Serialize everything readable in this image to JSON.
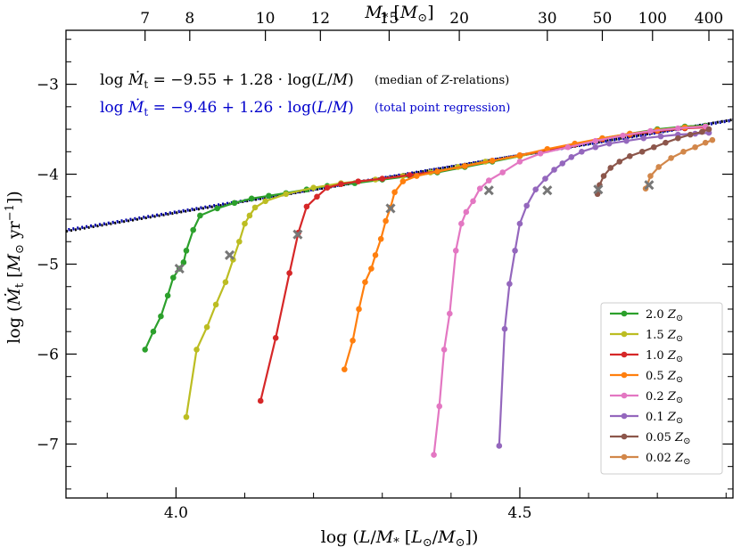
{
  "chart_data": {
    "type": "line",
    "xlabel": "log (L/M_* [L_⊙/M_⊙])",
    "ylabel": "log (Ṁ_t [M_⊙ yr^-1])",
    "top_xlabel": "M_* [M_⊙]",
    "xlim": [
      3.84,
      4.81
    ],
    "ylim": [
      -7.6,
      -2.4
    ],
    "x_ticks": [
      4.0,
      4.5
    ],
    "x_tick_labels": [
      "4.0",
      "4.5"
    ],
    "y_ticks": [
      -7,
      -6,
      -5,
      -4,
      -3
    ],
    "y_tick_labels": [
      "−7",
      "−6",
      "−5",
      "−4",
      "−3"
    ],
    "top_ticks": [
      {
        "label": "7",
        "x": 3.955
      },
      {
        "label": "8",
        "x": 4.02
      },
      {
        "label": "10",
        "x": 4.13
      },
      {
        "label": "12",
        "x": 4.21
      },
      {
        "label": "15",
        "x": 4.31
      },
      {
        "label": "20",
        "x": 4.412
      },
      {
        "label": "30",
        "x": 4.54
      },
      {
        "label": "50",
        "x": 4.62
      },
      {
        "label": "100",
        "x": 4.693
      },
      {
        "label": "400",
        "x": 4.775
      }
    ],
    "annotations": [
      {
        "line1": "log  Ṁ_t = −9.55 + 1.28 · log(L/M)",
        "line2": "(median of Z-relations)",
        "color": "#000000"
      },
      {
        "line1": "log  Ṁ_t = −9.46 + 1.26 · log(L/M)",
        "line2": "(total point regression)",
        "color": "#0000cc"
      }
    ],
    "regression_lines": [
      {
        "intercept": -9.55,
        "slope": 1.28,
        "color": "#000000",
        "style": "dotted"
      },
      {
        "intercept": -9.46,
        "slope": 1.26,
        "color": "#0000aa",
        "style": "dotted"
      }
    ],
    "legend_position": "lower-right",
    "series": [
      {
        "name": "2.0 Z_⊙",
        "label_num": "2.0",
        "color": "#2ca02c",
        "x": [
          3.955,
          3.967,
          3.978,
          3.988,
          3.996,
          4.005,
          4.011,
          4.015,
          4.025,
          4.035,
          4.06,
          4.085,
          4.11,
          4.135,
          4.16,
          4.19,
          4.22,
          4.26,
          4.3,
          4.34,
          4.38,
          4.42,
          4.46,
          4.5,
          4.54,
          4.58,
          4.62,
          4.66,
          4.7,
          4.74,
          4.77
        ],
        "y": [
          -5.95,
          -5.75,
          -5.58,
          -5.35,
          -5.15,
          -5.05,
          -4.98,
          -4.85,
          -4.62,
          -4.46,
          -4.38,
          -4.32,
          -4.27,
          -4.24,
          -4.21,
          -4.17,
          -4.13,
          -4.1,
          -4.06,
          -4.02,
          -3.98,
          -3.92,
          -3.86,
          -3.8,
          -3.73,
          -3.67,
          -3.6,
          -3.55,
          -3.5,
          -3.47,
          -3.46
        ],
        "mark": {
          "x": 4.005,
          "y": -5.05
        }
      },
      {
        "name": "1.5 Z_⊙",
        "label_num": "1.5",
        "color": "#bcbd22",
        "x": [
          4.015,
          4.03,
          4.045,
          4.058,
          4.072,
          4.083,
          4.092,
          4.1,
          4.107,
          4.115,
          4.13,
          4.16,
          4.2,
          4.24,
          4.29,
          4.33,
          4.37,
          4.41,
          4.45,
          4.5,
          4.54,
          4.58,
          4.62,
          4.66,
          4.7,
          4.74,
          4.77
        ],
        "y": [
          -6.7,
          -5.95,
          -5.7,
          -5.45,
          -5.2,
          -4.95,
          -4.75,
          -4.55,
          -4.46,
          -4.37,
          -4.3,
          -4.22,
          -4.15,
          -4.1,
          -4.06,
          -4.02,
          -3.98,
          -3.92,
          -3.86,
          -3.8,
          -3.73,
          -3.67,
          -3.61,
          -3.56,
          -3.51,
          -3.48,
          -3.47
        ],
        "mark": {
          "x": 4.078,
          "y": -4.9
        }
      },
      {
        "name": "1.0 Z_⊙",
        "label_num": "1.0",
        "color": "#d62728",
        "x": [
          4.123,
          4.145,
          4.165,
          4.178,
          4.19,
          4.205,
          4.22,
          4.24,
          4.265,
          4.3,
          4.34,
          4.38,
          4.42,
          4.46,
          4.5,
          4.54,
          4.58,
          4.62,
          4.66,
          4.7,
          4.74,
          4.77
        ],
        "y": [
          -6.52,
          -5.82,
          -5.1,
          -4.65,
          -4.36,
          -4.25,
          -4.15,
          -4.11,
          -4.08,
          -4.05,
          -4.01,
          -3.97,
          -3.91,
          -3.85,
          -3.79,
          -3.73,
          -3.67,
          -3.61,
          -3.56,
          -3.52,
          -3.49,
          -3.48
        ],
        "mark": {
          "x": 4.177,
          "y": -4.67
        }
      },
      {
        "name": "0.5 Z_⊙",
        "label_num": "0.5",
        "color": "#ff7f0e",
        "x": [
          4.245,
          4.257,
          4.266,
          4.275,
          4.284,
          4.29,
          4.298,
          4.305,
          4.312,
          4.318,
          4.33,
          4.35,
          4.38,
          4.42,
          4.46,
          4.5,
          4.54,
          4.58,
          4.62,
          4.66,
          4.7,
          4.74,
          4.77
        ],
        "y": [
          -6.17,
          -5.85,
          -5.5,
          -5.2,
          -5.05,
          -4.9,
          -4.72,
          -4.52,
          -4.37,
          -4.2,
          -4.08,
          -4.02,
          -3.97,
          -3.91,
          -3.85,
          -3.79,
          -3.72,
          -3.66,
          -3.6,
          -3.55,
          -3.51,
          -3.48,
          -3.47
        ],
        "mark": {
          "x": 4.312,
          "y": -4.38
        }
      },
      {
        "name": "0.2 Z_⊙",
        "label_num": "0.2",
        "color": "#e377c2",
        "x": [
          4.375,
          4.383,
          4.39,
          4.398,
          4.407,
          4.415,
          4.422,
          4.432,
          4.442,
          4.455,
          4.475,
          4.5,
          4.53,
          4.57,
          4.61,
          4.65,
          4.69,
          4.73,
          4.77
        ],
        "y": [
          -7.12,
          -6.58,
          -5.95,
          -5.55,
          -4.85,
          -4.55,
          -4.42,
          -4.3,
          -4.16,
          -4.07,
          -3.98,
          -3.86,
          -3.77,
          -3.7,
          -3.63,
          -3.57,
          -3.52,
          -3.49,
          -3.47
        ],
        "mark": {
          "x": 4.455,
          "y": -4.18
        }
      },
      {
        "name": "0.1 Z_⊙",
        "label_num": "0.1",
        "color": "#9467bd",
        "x": [
          4.47,
          4.478,
          4.485,
          4.493,
          4.5,
          4.51,
          4.523,
          4.537,
          4.55,
          4.562,
          4.575,
          4.59,
          4.61,
          4.63,
          4.655,
          4.68,
          4.705,
          4.73,
          4.755,
          4.775
        ],
        "y": [
          -7.02,
          -5.72,
          -5.22,
          -4.85,
          -4.55,
          -4.35,
          -4.17,
          -4.05,
          -3.95,
          -3.88,
          -3.81,
          -3.75,
          -3.7,
          -3.66,
          -3.63,
          -3.6,
          -3.58,
          -3.56,
          -3.55,
          -3.54
        ],
        "mark": {
          "x": 4.54,
          "y": -4.18
        }
      },
      {
        "name": "0.05 Z_⊙",
        "label_num": "0.05",
        "color": "#8c564b",
        "x": [
          4.613,
          4.616,
          4.622,
          4.632,
          4.645,
          4.66,
          4.678,
          4.695,
          4.712,
          4.73,
          4.748,
          4.765,
          4.775
        ],
        "y": [
          -4.22,
          -4.12,
          -4.02,
          -3.93,
          -3.86,
          -3.8,
          -3.75,
          -3.7,
          -3.65,
          -3.6,
          -3.56,
          -3.53,
          -3.5
        ],
        "mark": {
          "x": 4.614,
          "y": -4.17
        }
      },
      {
        "name": "0.02 Z_⊙",
        "label_num": "0.02",
        "color": "#d2874a",
        "x": [
          4.683,
          4.69,
          4.702,
          4.72,
          4.738,
          4.755,
          4.77,
          4.78
        ],
        "y": [
          -4.16,
          -4.02,
          -3.92,
          -3.82,
          -3.75,
          -3.7,
          -3.65,
          -3.62
        ],
        "mark": {
          "x": 4.688,
          "y": -4.12
        }
      }
    ]
  }
}
